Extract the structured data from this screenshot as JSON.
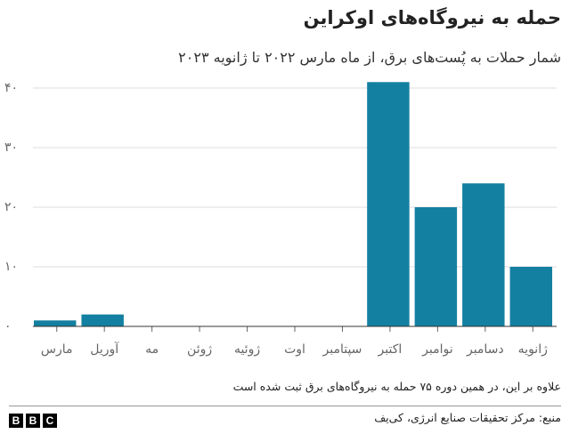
{
  "chart_data": {
    "type": "bar",
    "title": "حمله به نیروگاه‌های اوکراین",
    "subtitle": "شمار حملات به پُست‌های برق، از ماه مارس ۲۰۲۲ تا ژانویه ۲۰۲۳",
    "categories": [
      "مارس",
      "آوریل",
      "مه",
      "ژوئن",
      "ژوئیه",
      "اوت",
      "سپتامبر",
      "اکتبر",
      "نوامبر",
      "دسامبر",
      "ژانویه"
    ],
    "values": [
      1,
      2,
      0,
      0,
      0,
      0,
      0,
      41,
      20,
      24,
      10
    ],
    "color": "#1380a1",
    "ylim": [
      0,
      40
    ],
    "yticks": [
      {
        "value": 0,
        "label": "۰"
      },
      {
        "value": 10,
        "label": "۱۰"
      },
      {
        "value": 20,
        "label": "۲۰"
      },
      {
        "value": 30,
        "label": "۳۰"
      },
      {
        "value": 40,
        "label": "۴۰"
      }
    ],
    "grid": true,
    "note": "علاوه بر این، در همین دوره ۷۵ حمله به نیروگاه‌های برق ثبت شده است",
    "source": "منبع: مرکز تحقیقات صنایع انرژی، کی‌یف",
    "logo": [
      "B",
      "B",
      "C"
    ]
  }
}
